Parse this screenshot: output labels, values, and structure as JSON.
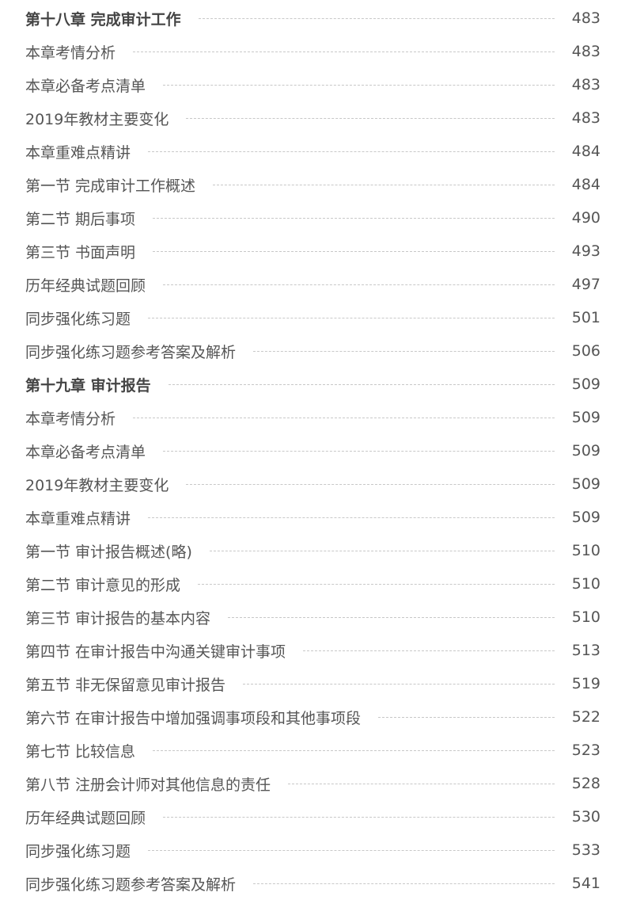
{
  "entries": [
    {
      "title": "第十八章  完成审计工作",
      "page": "483",
      "chapter": true
    },
    {
      "title": "本章考情分析",
      "page": "483"
    },
    {
      "title": "本章必备考点清单",
      "page": "483"
    },
    {
      "title": "2019年教材主要变化",
      "page": "483"
    },
    {
      "title": "本章重难点精讲",
      "page": "484"
    },
    {
      "title": "第一节 完成审计工作概述",
      "page": "484"
    },
    {
      "title": "第二节 期后事项",
      "page": "490"
    },
    {
      "title": "第三节 书面声明",
      "page": "493"
    },
    {
      "title": "历年经典试题回顾",
      "page": "497"
    },
    {
      "title": "同步强化练习题",
      "page": "501"
    },
    {
      "title": "同步强化练习题参考答案及解析",
      "page": "506"
    },
    {
      "title": "第十九章  审计报告",
      "page": "509",
      "chapter": true
    },
    {
      "title": "本章考情分析",
      "page": "509"
    },
    {
      "title": "本章必备考点清单",
      "page": "509"
    },
    {
      "title": "2019年教材主要变化",
      "page": "509"
    },
    {
      "title": "本章重难点精讲",
      "page": "509"
    },
    {
      "title": "第一节 审计报告概述(略)",
      "page": "510"
    },
    {
      "title": "第二节 审计意见的形成",
      "page": "510"
    },
    {
      "title": "第三节 审计报告的基本内容",
      "page": "510"
    },
    {
      "title": "第四节 在审计报告中沟通关键审计事项",
      "page": "513"
    },
    {
      "title": "第五节 非无保留意见审计报告",
      "page": "519"
    },
    {
      "title": "第六节 在审计报告中增加强调事项段和其他事项段",
      "page": "522"
    },
    {
      "title": "第七节 比较信息",
      "page": "523"
    },
    {
      "title": "第八节 注册会计师对其他信息的责任",
      "page": "528"
    },
    {
      "title": "历年经典试题回顾",
      "page": "530"
    },
    {
      "title": "同步强化练习题",
      "page": "533"
    },
    {
      "title": "同步强化练习题参考答案及解析",
      "page": "541"
    }
  ]
}
